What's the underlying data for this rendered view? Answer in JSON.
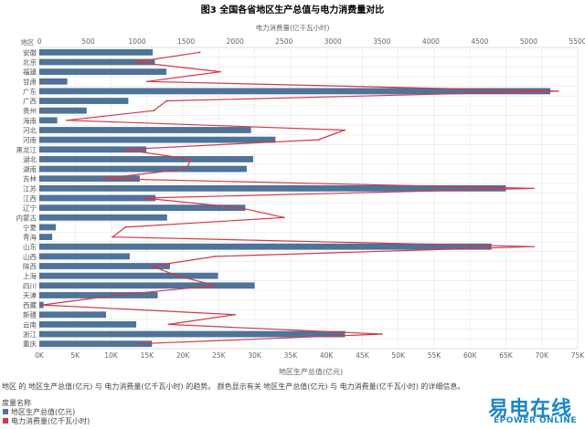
{
  "chart_data": {
    "type": "bar",
    "orientation": "horizontal",
    "title": "图3 全国各省地区生产总值与电力消费量对比",
    "category_axis_label": "地区",
    "categories": [
      "安徽",
      "北京",
      "福建",
      "甘肃",
      "广东",
      "广西",
      "贵州",
      "海南",
      "河北",
      "河南",
      "黑龙江",
      "湖北",
      "湖南",
      "吉林",
      "江苏",
      "江西",
      "辽宁",
      "内蒙古",
      "宁夏",
      "青海",
      "山东",
      "山西",
      "陕西",
      "上海",
      "四川",
      "天津",
      "西藏",
      "新疆",
      "云南",
      "浙江",
      "重庆"
    ],
    "series": [
      {
        "name": "地区生产总值(亿元)",
        "type": "bar",
        "color": "#4f7399",
        "axis": "bottom",
        "values": [
          15800,
          16100,
          17700,
          3900,
          71200,
          12400,
          6600,
          2500,
          29500,
          32900,
          14900,
          29800,
          28900,
          14000,
          65000,
          16200,
          28700,
          17800,
          2300,
          1800,
          63000,
          12600,
          18200,
          24900,
          30000,
          16500,
          600,
          9300,
          13500,
          42600,
          15700
        ]
      },
      {
        "name": "电力消费量(亿千瓦小时)",
        "type": "line",
        "color": "#d03a4a",
        "axis": "top",
        "values": [
          1640,
          980,
          1850,
          1100,
          5300,
          1300,
          1170,
          280,
          3120,
          2850,
          860,
          1550,
          1500,
          650,
          5050,
          1070,
          2050,
          2500,
          880,
          750,
          5050,
          1800,
          1150,
          1410,
          1800,
          780,
          30,
          2000,
          1320,
          3500,
          1000
        ]
      }
    ],
    "bottom_axis": {
      "label": "地区生产总值(亿元)",
      "range": [
        0,
        75000
      ],
      "ticks": [
        0,
        5000,
        10000,
        15000,
        20000,
        25000,
        30000,
        35000,
        40000,
        45000,
        50000,
        55000,
        60000,
        65000,
        70000,
        75000
      ],
      "tick_labels": [
        "0K",
        "5K",
        "10K",
        "15K",
        "20K",
        "25K",
        "30K",
        "35K",
        "40K",
        "45K",
        "50K",
        "55K",
        "60K",
        "65K",
        "70K",
        "75K"
      ]
    },
    "top_axis": {
      "label": "电力消费量(亿千瓦小时)",
      "range": [
        0,
        5500
      ],
      "ticks": [
        0,
        500,
        1000,
        1500,
        2000,
        2500,
        3000,
        3500,
        4000,
        4500,
        5000,
        5500
      ],
      "tick_labels": [
        "0",
        "500",
        "1000",
        "1500",
        "2000",
        "2500",
        "3000",
        "3500",
        "4000",
        "4500",
        "5000",
        "5500"
      ]
    },
    "grid": true
  },
  "note": "地区 的 地区生产总值(亿元) 与 电力消费量(亿千瓦小时) 的趋势。 颜色显示有关 地区生产总值(亿元) 与 电力消费量(亿千瓦小时) 的详细信息。",
  "legend": {
    "title": "度量名称",
    "items": [
      {
        "label": "地区生产总值(亿元)",
        "color": "#4f7399"
      },
      {
        "label": "电力消费量(亿千瓦小时)",
        "color": "#d03a4a"
      }
    ]
  },
  "logo": {
    "cn": "易电在线",
    "en": "EPOWER ONLINE"
  }
}
